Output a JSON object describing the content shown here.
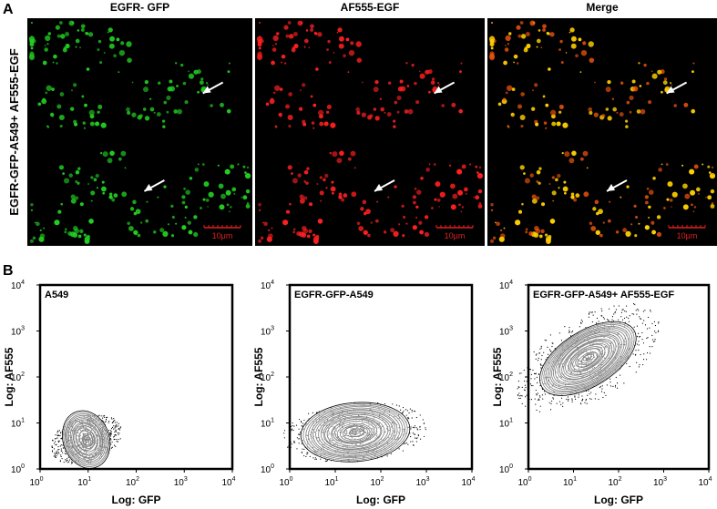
{
  "panel_a": {
    "label": "A",
    "columns": [
      "EGFR- GFP",
      "AF555-EGF",
      "Merge"
    ],
    "row_label": "EGFR-GFP-A549+ AF555-EGF",
    "scale_bar": "10μm"
  },
  "panel_b": {
    "label": "B",
    "plots": [
      {
        "title": "A549",
        "x_label": "Log: GFP",
        "y_label": "Log: AF555"
      },
      {
        "title": "EGFR-GFP-A549",
        "x_label": "Log: GFP",
        "y_label": "Log: AF555"
      },
      {
        "title": "EGFR-GFP-A549+ AF555-EGF",
        "x_label": "Log: GFP",
        "y_label": "Log: AF555"
      }
    ],
    "ticks": [
      {
        "base": "10",
        "exponent": "0"
      },
      {
        "base": "10",
        "exponent": "1"
      },
      {
        "base": "10",
        "exponent": "2"
      },
      {
        "base": "10",
        "exponent": "3"
      },
      {
        "base": "10",
        "exponent": "4"
      }
    ]
  }
}
